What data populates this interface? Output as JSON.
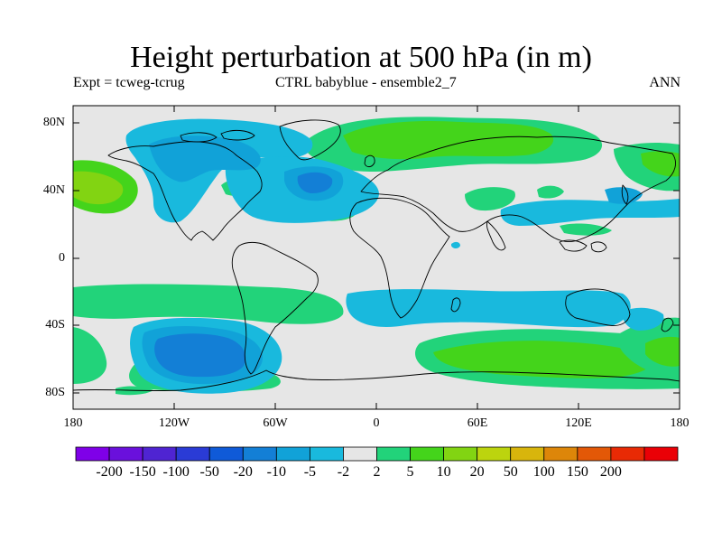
{
  "title": "Height perturbation at 500 hPa (in m)",
  "subtitle_left": "Expt = tcweg-tcrug",
  "subtitle_center": "CTRL babyblue - ensemble2_7",
  "subtitle_right": "ANN",
  "lat_labels": [
    "80N",
    "40N",
    "0",
    "40S",
    "80S"
  ],
  "lon_labels": [
    "180",
    "120W",
    "60W",
    "0",
    "60E",
    "120E",
    "180"
  ],
  "colorbar": {
    "levels": [
      "-200",
      "-150",
      "-100",
      "-50",
      "-20",
      "-10",
      "-5",
      "-2",
      "2",
      "5",
      "10",
      "20",
      "50",
      "100",
      "150",
      "200"
    ],
    "colors": [
      "#7f00e8",
      "#6a10dc",
      "#4f24d2",
      "#2a3bd6",
      "#0f5ad8",
      "#137fd6",
      "#11a2d8",
      "#19b9dd",
      "#e6e6e6",
      "#22d37a",
      "#44d41b",
      "#82d412",
      "#bcd40e",
      "#d8b50c",
      "#dd8609",
      "#e35807",
      "#e82a05",
      "#ea0006"
    ]
  },
  "chart_data": {
    "type": "heatmap",
    "title": "Height perturbation at 500 hPa (in m)",
    "variable": "500 hPa geopotential height perturbation",
    "units": "m",
    "season": "ANN",
    "lon_range": [
      -180,
      180
    ],
    "lat_range": [
      -90,
      90
    ],
    "contour_levels": [
      -200,
      -150,
      -100,
      -50,
      -20,
      -10,
      -5,
      -2,
      2,
      5,
      10,
      20,
      50,
      100,
      150,
      200
    ],
    "features": [
      {
        "region": "North Pacific west of North America",
        "lon": -160,
        "lat": 40,
        "level": "20 to 50",
        "approx": 25
      },
      {
        "region": "Canada / Arctic",
        "lon": -100,
        "lat": 65,
        "level": "-20 to -5",
        "approx": -12
      },
      {
        "region": "North Atlantic",
        "lon": -40,
        "lat": 43,
        "level": "-20 to -10",
        "approx": -15
      },
      {
        "region": "Eurasia high latitudes",
        "lon": 50,
        "lat": 70,
        "level": "5 to 20",
        "approx": 8
      },
      {
        "region": "Indian Ocean / southern Africa",
        "lon": 40,
        "lat": -30,
        "level": "-5 to -2",
        "approx": -4
      },
      {
        "region": "South Pacific",
        "lon": -110,
        "lat": -60,
        "level": "-50 to -20",
        "approx": -30
      },
      {
        "region": "Southern Ocean south of Africa/Australia",
        "lon": 90,
        "lat": -55,
        "level": "5 to 20",
        "approx": 10
      }
    ]
  }
}
